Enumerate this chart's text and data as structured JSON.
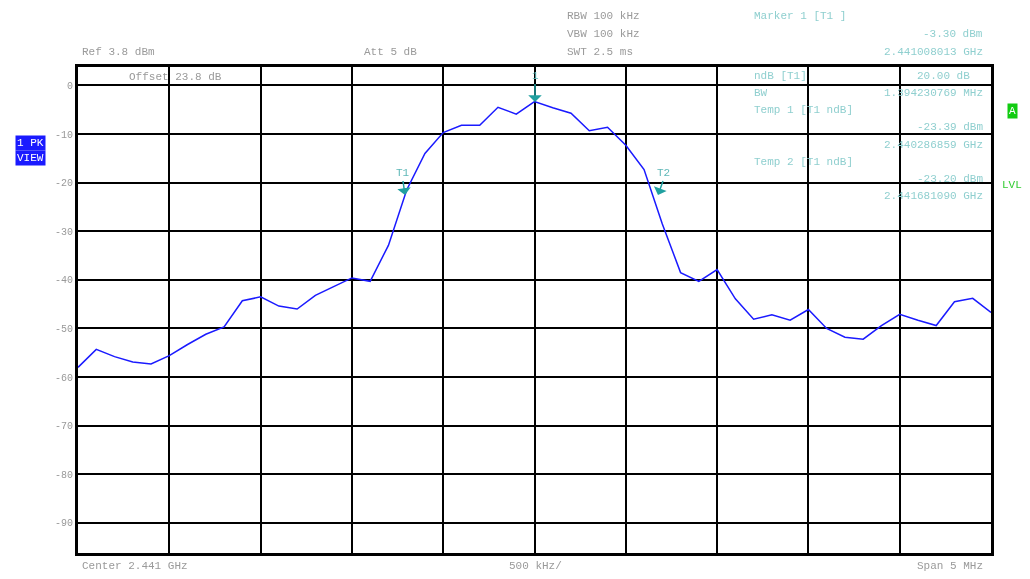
{
  "chart_data": {
    "type": "line",
    "categories": [
      null,
      null,
      null,
      null,
      null,
      null,
      null,
      null,
      null,
      null,
      null,
      null,
      null,
      null,
      null,
      null,
      null,
      null,
      null,
      null,
      null,
      null,
      null,
      null,
      null,
      null,
      null,
      null,
      null,
      null,
      null,
      null,
      null,
      null,
      null,
      null,
      null,
      null,
      null,
      null,
      null,
      null,
      null,
      null,
      null,
      null,
      null,
      null,
      null,
      null,
      null
    ],
    "ylim": [
      -96.2,
      3.8
    ],
    "yticks": [
      0,
      -10,
      -20,
      -30,
      -40,
      -50,
      -60,
      -70,
      -80,
      -90
    ],
    "tick_labels": "y",
    "grid": true,
    "legend": false,
    "series": [
      {
        "color": "#1a1aff",
        "line_style": "solid",
        "marker": "none",
        "values": [
          -58,
          -54.3,
          -55.8,
          -56.9,
          -57.3,
          -55.6,
          -53.3,
          -51.2,
          -49.7,
          -44.3,
          -43.5,
          -45.4,
          -46,
          -43.2,
          -41.4,
          -39.6,
          -40.3,
          -32.9,
          -21.5,
          -14,
          -9.7,
          -8.2,
          -8.2,
          -4.5,
          -5.9,
          -3.3,
          -4.6,
          -5.7,
          -9.3,
          -8.6,
          -12.3,
          -17.3,
          -28.5,
          -38.5,
          -40.3,
          -37.9,
          -43.9,
          -48.1,
          -47.2,
          -48.3,
          -46.1,
          -50,
          -51.8,
          -52.2,
          -49.4,
          -47.1,
          -48.3,
          -49.4,
          -44.5,
          -43.8,
          -46.7
        ]
      }
    ],
    "annotations": [
      "Ref 3.8 dBm",
      "Att 5 dB",
      "Offset 23.8 dB",
      "RBW 100 kHz",
      "VBW 100 kHz",
      "SWT 2.5 ms",
      "Marker 1 [T1 ]",
      "-3.30 dBm",
      "2.441008013 GHz",
      "ndB [T1]",
      "20.00 dB",
      "BW",
      "1.394230769 MHz",
      "Temp 1 [T1 ndB]",
      "-23.39 dBm",
      "2.440286859 GHz",
      "Temp 2 [T1 ndB]",
      "-23.20 dBm",
      "2.441681090 GHz",
      "1 PK",
      "VIEW",
      "A",
      "LVL",
      "Center 2.441 GHz",
      "500 kHz/",
      "Span 5 MHz",
      "1",
      "T1",
      "T2"
    ]
  }
}
